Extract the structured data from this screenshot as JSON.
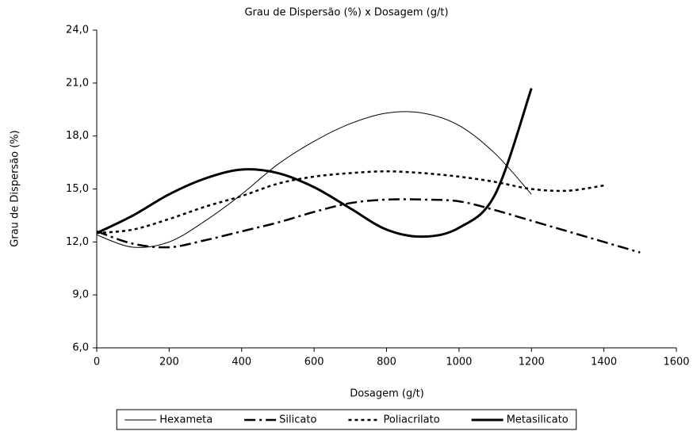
{
  "chart_data": {
    "type": "line",
    "title": "Grau de Dispersão (%)  x  Dosagem (g/t)",
    "x_label": "Dosagem (g/t)",
    "y_label": "Grau de Dispersão (%)",
    "xlim": [
      0,
      1600
    ],
    "xticks": [
      0,
      200,
      400,
      600,
      800,
      1000,
      1200,
      1400,
      1600
    ],
    "ylim": [
      6,
      24
    ],
    "yticks": [
      {
        "value": 6,
        "label": "6,0"
      },
      {
        "value": 9,
        "label": "9,0"
      },
      {
        "value": 12,
        "label": "12,0"
      },
      {
        "value": 15,
        "label": "15,0"
      },
      {
        "value": 18,
        "label": "18,0"
      },
      {
        "value": 21,
        "label": "21,0"
      },
      {
        "value": 24,
        "label": "24,0"
      }
    ],
    "grid": false,
    "legend": "bottom",
    "series": [
      {
        "name": "Hexameta",
        "color": "#000000",
        "dash": "solid",
        "width": 1,
        "x": [
          0,
          100,
          200,
          300,
          400,
          500,
          600,
          700,
          800,
          900,
          1000,
          1100,
          1200
        ],
        "values": [
          12.4,
          11.7,
          12.0,
          13.2,
          14.7,
          16.4,
          17.7,
          18.7,
          19.3,
          19.3,
          18.6,
          17.0,
          14.7
        ]
      },
      {
        "name": "Silicato",
        "color": "#000000",
        "dash": "dashdot",
        "width": 2.5,
        "x": [
          0,
          100,
          200,
          300,
          400,
          500,
          600,
          700,
          800,
          900,
          1000,
          1100,
          1200,
          1300,
          1400,
          1500
        ],
        "values": [
          12.6,
          11.9,
          11.7,
          12.1,
          12.6,
          13.1,
          13.7,
          14.2,
          14.4,
          14.4,
          14.3,
          13.8,
          13.2,
          12.6,
          12.0,
          11.4
        ]
      },
      {
        "name": "Poliacrilato",
        "color": "#000000",
        "dash": "dash",
        "width": 2.5,
        "x": [
          0,
          100,
          200,
          300,
          400,
          500,
          600,
          700,
          800,
          900,
          1000,
          1100,
          1200,
          1300,
          1400
        ],
        "values": [
          12.5,
          12.7,
          13.3,
          14.0,
          14.6,
          15.3,
          15.7,
          15.9,
          16.0,
          15.9,
          15.7,
          15.4,
          15.0,
          14.9,
          15.2
        ]
      },
      {
        "name": "Metasilicato",
        "color": "#000000",
        "dash": "solid",
        "width": 3,
        "x": [
          0,
          100,
          200,
          300,
          400,
          500,
          600,
          700,
          800,
          900,
          1000,
          1100,
          1200
        ],
        "values": [
          12.5,
          13.5,
          14.7,
          15.6,
          16.1,
          15.9,
          15.1,
          13.9,
          12.7,
          12.3,
          12.8,
          14.7,
          20.7
        ]
      }
    ]
  }
}
